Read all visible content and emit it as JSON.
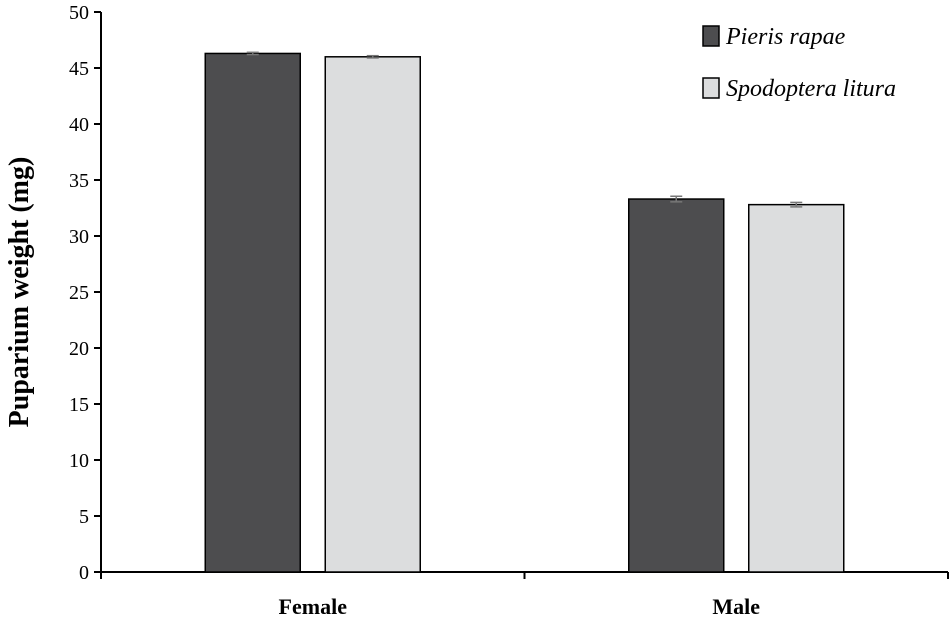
{
  "chart_data": {
    "type": "bar",
    "title": "",
    "xlabel": "",
    "ylabel": "Puparium weight (mg)",
    "categories": [
      "Female",
      "Male"
    ],
    "ylim": [
      0,
      50
    ],
    "yticks": [
      0,
      5,
      10,
      15,
      20,
      25,
      30,
      35,
      40,
      45,
      50
    ],
    "grid": false,
    "legend_position": "top-right",
    "series": [
      {
        "name": "Pieris rapae",
        "color": "#4d4d4f",
        "values": [
          46.3,
          33.3
        ],
        "errors": [
          0.1,
          0.25
        ]
      },
      {
        "name": "Spodoptera litura",
        "color": "#dcddde",
        "values": [
          46.0,
          32.8
        ],
        "errors": [
          0.1,
          0.2
        ]
      }
    ]
  }
}
